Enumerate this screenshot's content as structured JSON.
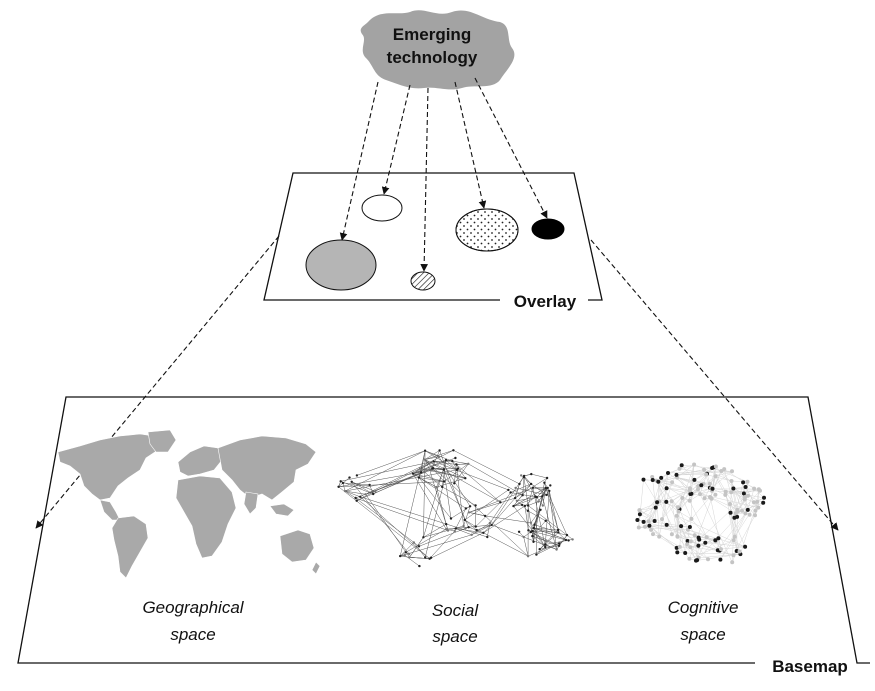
{
  "cloud": {
    "line1": "Emerging",
    "line2": "technology"
  },
  "overlay": {
    "label": "Overlay"
  },
  "basemap": {
    "label": "Basemap",
    "spaces": [
      {
        "line1": "Geographical",
        "line2": "space"
      },
      {
        "line1": "Social",
        "line2": "space"
      },
      {
        "line1": "Cognitive",
        "line2": "space"
      }
    ]
  },
  "colors": {
    "cloud_fill": "#a3a3a3",
    "large_circle_fill": "#b5b5b5",
    "map_fill": "#a9a9a9",
    "outline": "#111111"
  }
}
